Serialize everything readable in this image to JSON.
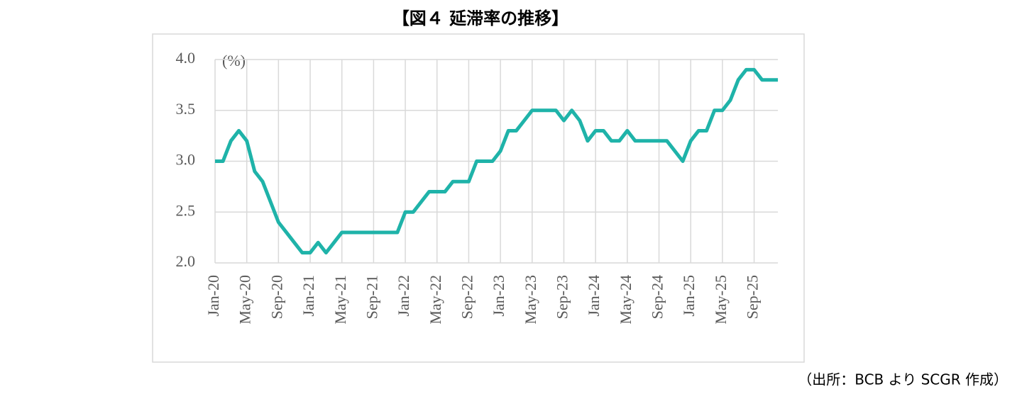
{
  "chart_data": {
    "type": "line",
    "title": "【図４ 延滞率の推移】",
    "y_unit_label": "(%)",
    "source": "（出所：BCB より SCGR 作成）",
    "categories": [
      "Jan-20",
      null,
      null,
      null,
      "May-20",
      null,
      null,
      null,
      "Sep-20",
      null,
      null,
      null,
      "Jan-21",
      null,
      null,
      null,
      "May-21",
      null,
      null,
      null,
      "Sep-21",
      null,
      null,
      null,
      "Jan-22",
      null,
      null,
      null,
      "May-22",
      null,
      null,
      null,
      "Sep-22",
      null,
      null,
      null,
      "Jan-23",
      null,
      null,
      null,
      "May-23",
      null,
      null,
      null,
      "Sep-23",
      null,
      null,
      null,
      "Jan-24",
      null,
      null,
      null,
      "May-24",
      null,
      null,
      null,
      "Sep-24",
      null,
      null,
      null,
      "Jan-25",
      null,
      null,
      null,
      "May-25",
      null,
      null,
      null,
      "Sep-25",
      null,
      null,
      null
    ],
    "series": [
      {
        "name": "延滞率",
        "color": "#1fb3a9",
        "values": [
          3.0,
          3.0,
          3.2,
          3.3,
          3.2,
          2.9,
          2.8,
          2.6,
          2.4,
          2.3,
          2.2,
          2.1,
          2.1,
          2.2,
          2.1,
          2.2,
          2.3,
          2.3,
          2.3,
          2.3,
          2.3,
          2.3,
          2.3,
          2.3,
          2.5,
          2.5,
          2.6,
          2.7,
          2.7,
          2.7,
          2.8,
          2.8,
          2.8,
          3.0,
          3.0,
          3.0,
          3.1,
          3.3,
          3.3,
          3.4,
          3.5,
          3.5,
          3.5,
          3.5,
          3.4,
          3.5,
          3.4,
          3.2,
          3.3,
          3.3,
          3.2,
          3.2,
          3.3,
          3.2,
          3.2,
          3.2,
          3.2,
          3.2,
          3.1,
          3.0,
          3.2,
          3.3,
          3.3,
          3.5,
          3.5,
          3.6,
          3.8,
          3.9,
          3.9,
          3.8,
          3.8,
          3.8
        ]
      }
    ],
    "ylim": [
      2.0,
      4.0
    ],
    "yticks": [
      {
        "value": 2.0,
        "label": "2.0"
      },
      {
        "value": 2.5,
        "label": "2.5"
      },
      {
        "value": 3.0,
        "label": "3.0"
      },
      {
        "value": 3.5,
        "label": "3.5"
      },
      {
        "value": 4.0,
        "label": "4.0"
      }
    ],
    "grid": true
  }
}
